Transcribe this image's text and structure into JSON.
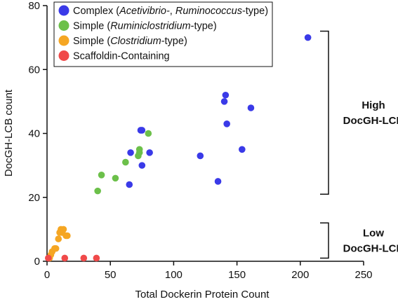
{
  "chart_data": {
    "type": "scatter",
    "title": "",
    "xlabel": "Total Dockerin Protein Count",
    "ylabel": "DocGH-LCB count",
    "xlim": [
      0,
      250
    ],
    "ylim": [
      0,
      80
    ],
    "xticks": [
      0,
      50,
      100,
      150,
      200,
      250
    ],
    "yticks": [
      0,
      20,
      40,
      60,
      80
    ],
    "grid": false,
    "legend_position": "top-left",
    "series": [
      {
        "name": "Complex (Acetivibrio-, Ruminococcus-type)",
        "legend_parts": [
          {
            "text": "Complex (",
            "italic": false
          },
          {
            "text": "Acetivibrio-",
            "italic": true
          },
          {
            "text": ", ",
            "italic": false
          },
          {
            "text": "Ruminococcus",
            "italic": true
          },
          {
            "text": "-type)",
            "italic": false
          }
        ],
        "color": "#3a3ae8",
        "points": [
          [
            206,
            70
          ],
          [
            141,
            52
          ],
          [
            140,
            50
          ],
          [
            161,
            48
          ],
          [
            142,
            43
          ],
          [
            74,
            41
          ],
          [
            75,
            41
          ],
          [
            66,
            34
          ],
          [
            81,
            34
          ],
          [
            154,
            35
          ],
          [
            121,
            33
          ],
          [
            75,
            30
          ],
          [
            135,
            25
          ],
          [
            65,
            24
          ]
        ]
      },
      {
        "name": "Simple (Ruminiclostridium-type)",
        "legend_parts": [
          {
            "text": "Simple (",
            "italic": false
          },
          {
            "text": "Ruminiclostridium",
            "italic": true
          },
          {
            "text": "-type)",
            "italic": false
          }
        ],
        "color": "#6cc04a",
        "points": [
          [
            80,
            40
          ],
          [
            73,
            35
          ],
          [
            73,
            34
          ],
          [
            72,
            33
          ],
          [
            62,
            31
          ],
          [
            43,
            27
          ],
          [
            54,
            26
          ],
          [
            40,
            22
          ]
        ]
      },
      {
        "name": "Simple (Clostridium-type)",
        "legend_parts": [
          {
            "text": "Simple (",
            "italic": false
          },
          {
            "text": "Clostridium",
            "italic": true
          },
          {
            "text": "-type)",
            "italic": false
          }
        ],
        "color": "#f5a623",
        "points": [
          [
            11,
            10
          ],
          [
            13,
            10
          ],
          [
            12,
            9
          ],
          [
            10,
            9
          ],
          [
            15,
            8
          ],
          [
            16,
            8
          ],
          [
            9,
            7
          ],
          [
            6,
            4
          ],
          [
            7,
            4
          ],
          [
            4,
            3
          ],
          [
            3,
            2
          ],
          [
            2,
            1
          ]
        ]
      },
      {
        "name": "Scaffoldin-Containing",
        "legend_parts": [
          {
            "text": "Scaffoldin-Containing",
            "italic": false
          }
        ],
        "color": "#f04a4a",
        "points": [
          [
            1,
            1
          ],
          [
            14,
            1
          ],
          [
            29,
            1
          ],
          [
            39,
            1
          ]
        ]
      }
    ],
    "annotations": [
      {
        "label_lines": [
          "High",
          "DocGH-LCB"
        ],
        "y_range": [
          21,
          72
        ]
      },
      {
        "label_lines": [
          "Low",
          "DocGH-LCB"
        ],
        "y_range": [
          1,
          12
        ]
      }
    ]
  }
}
